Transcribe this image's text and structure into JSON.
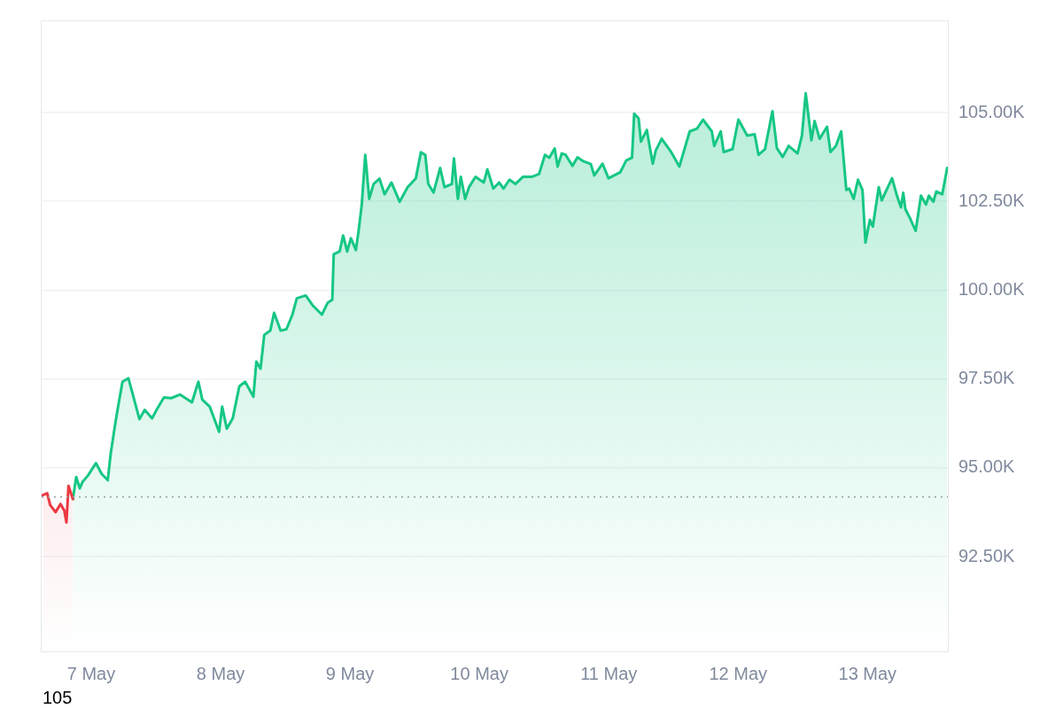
{
  "chart_data": {
    "type": "area",
    "xlim": [
      "--05-06T14:48",
      "--05-13T14:54"
    ],
    "xticks": [
      {
        "value": "--05-07",
        "label": "7 May"
      },
      {
        "value": "--05-08",
        "label": "8 May"
      },
      {
        "value": "--05-09",
        "label": "9 May"
      },
      {
        "value": "--05-10",
        "label": "10 May"
      },
      {
        "value": "--05-11",
        "label": "11 May"
      },
      {
        "value": "--05-12",
        "label": "12 May"
      },
      {
        "value": "--05-13",
        "label": "13 May"
      }
    ],
    "ylim": [
      89.83,
      107.57
    ],
    "yticks": [
      {
        "value": 92.5,
        "label": "92.50K"
      },
      {
        "value": 95,
        "label": "95.00K"
      },
      {
        "value": 97.5,
        "label": "97.50K"
      },
      {
        "value": 100,
        "label": "100.00K"
      },
      {
        "value": 102.5,
        "label": "102.50K"
      },
      {
        "value": 105,
        "label": "105.00K"
      }
    ],
    "grid": "y",
    "legend": false,
    "ref_lines": [
      {
        "axis": "y",
        "value": 94.18,
        "color": "#9aa0a6",
        "line_style": "dotted"
      }
    ],
    "annotations": [
      "105"
    ],
    "series": [
      {
        "color": "#ea3943",
        "x": [
          "--05-06T15:01",
          "--05-06T15:50",
          "--05-06T16:23",
          "--05-06T17:23",
          "--05-06T18:18",
          "--05-06T19:01",
          "--05-06T19:24",
          "--05-06T19:47",
          "--05-06T20:36"
        ],
        "values": [
          94.23,
          94.28,
          93.95,
          93.75,
          93.98,
          93.79,
          93.46,
          94.49,
          94.12
        ]
      },
      {
        "color": "#16c784",
        "x": [
          "--05-06T20:36",
          "--05-06T21:13",
          "--05-06T21:52",
          "--05-06T22:25",
          "--05-06T23:23",
          "--05-07T00:52",
          "--05-07T01:58",
          "--05-07T03:04",
          "--05-07T03:37",
          "--05-07T04:26",
          "--05-07T04:59",
          "--05-07T05:48",
          "--05-07T06:54",
          "--05-07T07:44",
          "--05-07T08:56",
          "--05-07T09:55",
          "--05-07T11:17",
          "--05-07T12:07",
          "--05-07T13:29",
          "--05-07T14:50",
          "--05-07T16:29",
          "--05-07T18:41",
          "--05-07T19:53",
          "--05-07T20:36",
          "--05-07T21:59",
          "--05-07T23:43",
          "--05-08T00:17",
          "--05-08T01:09",
          "--05-08T02:15",
          "--05-08T03:28",
          "--05-08T04:33",
          "--05-08T06:05",
          "--05-08T06:38",
          "--05-08T07:24",
          "--05-08T08:06",
          "--05-08T09:13",
          "--05-08T09:55",
          "--05-08T11:08",
          "--05-08T12:13",
          "--05-08T13:19",
          "--05-08T14:08",
          "--05-08T15:47",
          "--05-08T17:09",
          "--05-08T18:47",
          "--05-08T19:53",
          "--05-08T20:43",
          "--05-08T20:59",
          "--05-08T22:05",
          "--05-08T22:44",
          "--05-08T23:28",
          "--05-09T00:10",
          "--05-09T01:06",
          "--05-09T01:38",
          "--05-09T02:11",
          "--05-09T02:50",
          "--05-09T03:34",
          "--05-09T04:23",
          "--05-09T05:28",
          "--05-09T06:25",
          "--05-09T07:41",
          "--05-09T09:13",
          "--05-09T10:41",
          "--05-09T12:13",
          "--05-09T13:09",
          "--05-09T13:58",
          "--05-09T14:31",
          "--05-09T15:30",
          "--05-09T16:43",
          "--05-09T17:32",
          "--05-09T18:54",
          "--05-09T19:17",
          "--05-09T20:01",
          "--05-09T20:33",
          "--05-09T21:22",
          "--05-09T22:05",
          "--05-09T23:17",
          "--05-10T00:49",
          "--05-10T01:29",
          "--05-10T02:35",
          "--05-10T03:40",
          "--05-10T04:29",
          "--05-10T05:35",
          "--05-10T06:41",
          "--05-10T08:04",
          "--05-10T09:42",
          "--05-10T11:04",
          "--05-10T12:10",
          "--05-10T12:59",
          "--05-10T13:58",
          "--05-10T14:31",
          "--05-10T15:17",
          "--05-10T16:00",
          "--05-10T17:16",
          "--05-10T18:12",
          "--05-10T19:17",
          "--05-10T20:40",
          "--05-10T21:19",
          "--05-10T22:51",
          "--05-10T23:57",
          "--05-11T02:08",
          "--05-11T03:14",
          "--05-11T04:19",
          "--05-11T04:43",
          "--05-11T05:32",
          "--05-11T05:58",
          "--05-11T07:04",
          "--05-11T07:37",
          "--05-11T08:10",
          "--05-11T08:43",
          "--05-11T09:49",
          "--05-11T11:34",
          "--05-11T13:06",
          "--05-11T15:01",
          "--05-11T16:23",
          "--05-11T17:29",
          "--05-11T19:07",
          "--05-11T19:34",
          "--05-11T20:46",
          "--05-11T21:19",
          "--05-11T22:58",
          "--05-12T00:03",
          "--05-12T01:41",
          "--05-12T03:04",
          "--05-12T03:47",
          "--05-12T04:59",
          "--05-12T06:22",
          "--05-12T07:11",
          "--05-12T08:16",
          "--05-12T09:22",
          "--05-12T11:01",
          "--05-12T11:50",
          "--05-12T12:32",
          "--05-12T13:36",
          "--05-12T14:11",
          "--05-12T15:07",
          "--05-12T16:29",
          "--05-12T17:08",
          "--05-12T18:08",
          "--05-12T19:07",
          "--05-12T20:04",
          "--05-12T20:36",
          "--05-12T21:26",
          "--05-12T22:14",
          "--05-12T23:04",
          "--05-12T23:37",
          "--05-13T00:26",
          "--05-13T00:59",
          "--05-13T02:05",
          "--05-13T02:38",
          "--05-13T04:33",
          "--05-13T05:23",
          "--05-13T06:12",
          "--05-13T06:38",
          "--05-13T07:01",
          "--05-13T07:50",
          "--05-13T08:56",
          "--05-13T09:55",
          "--05-13T10:51",
          "--05-13T11:23",
          "--05-13T12:13",
          "--05-13T12:46",
          "--05-13T13:52",
          "--05-13T14:47"
        ],
        "values": [
          94.12,
          94.74,
          94.42,
          94.61,
          94.78,
          95.13,
          94.82,
          94.65,
          95.4,
          96.22,
          96.72,
          97.42,
          97.52,
          97.05,
          96.37,
          96.63,
          96.39,
          96.63,
          96.98,
          96.96,
          97.06,
          96.84,
          97.42,
          96.92,
          96.72,
          96.01,
          96.72,
          96.1,
          96.39,
          97.29,
          97.42,
          97.0,
          97.99,
          97.79,
          98.74,
          98.86,
          99.36,
          98.86,
          98.9,
          99.31,
          99.77,
          99.85,
          99.56,
          99.31,
          99.65,
          99.73,
          101.01,
          101.09,
          101.54,
          101.09,
          101.46,
          101.13,
          101.71,
          102.41,
          103.81,
          102.57,
          102.99,
          103.14,
          102.7,
          103.03,
          102.49,
          102.9,
          103.15,
          103.88,
          103.81,
          102.99,
          102.75,
          103.44,
          102.9,
          102.99,
          103.71,
          102.57,
          103.19,
          102.57,
          102.9,
          103.19,
          103.03,
          103.4,
          102.86,
          103.03,
          102.86,
          103.11,
          102.99,
          103.19,
          103.19,
          103.27,
          103.81,
          103.73,
          103.99,
          103.48,
          103.85,
          103.81,
          103.5,
          103.74,
          103.63,
          103.55,
          103.23,
          103.56,
          103.15,
          103.32,
          103.65,
          103.73,
          104.97,
          104.84,
          104.18,
          104.51,
          104.02,
          103.56,
          103.93,
          104.26,
          103.89,
          103.48,
          104.47,
          104.55,
          104.8,
          104.47,
          104.06,
          104.47,
          103.89,
          103.97,
          104.8,
          104.35,
          104.39,
          103.81,
          103.97,
          105.04,
          104.0,
          103.75,
          104.06,
          103.85,
          104.35,
          105.54,
          104.22,
          104.76,
          104.26,
          104.6,
          103.89,
          104.06,
          104.47,
          102.82,
          102.86,
          102.57,
          103.11,
          102.82,
          101.34,
          101.98,
          101.79,
          102.9,
          102.53,
          103.15,
          102.7,
          102.33,
          102.74,
          102.28,
          102.04,
          101.67,
          102.66,
          102.41,
          102.66,
          102.49,
          102.78,
          102.7,
          103.44
        ]
      }
    ]
  }
}
